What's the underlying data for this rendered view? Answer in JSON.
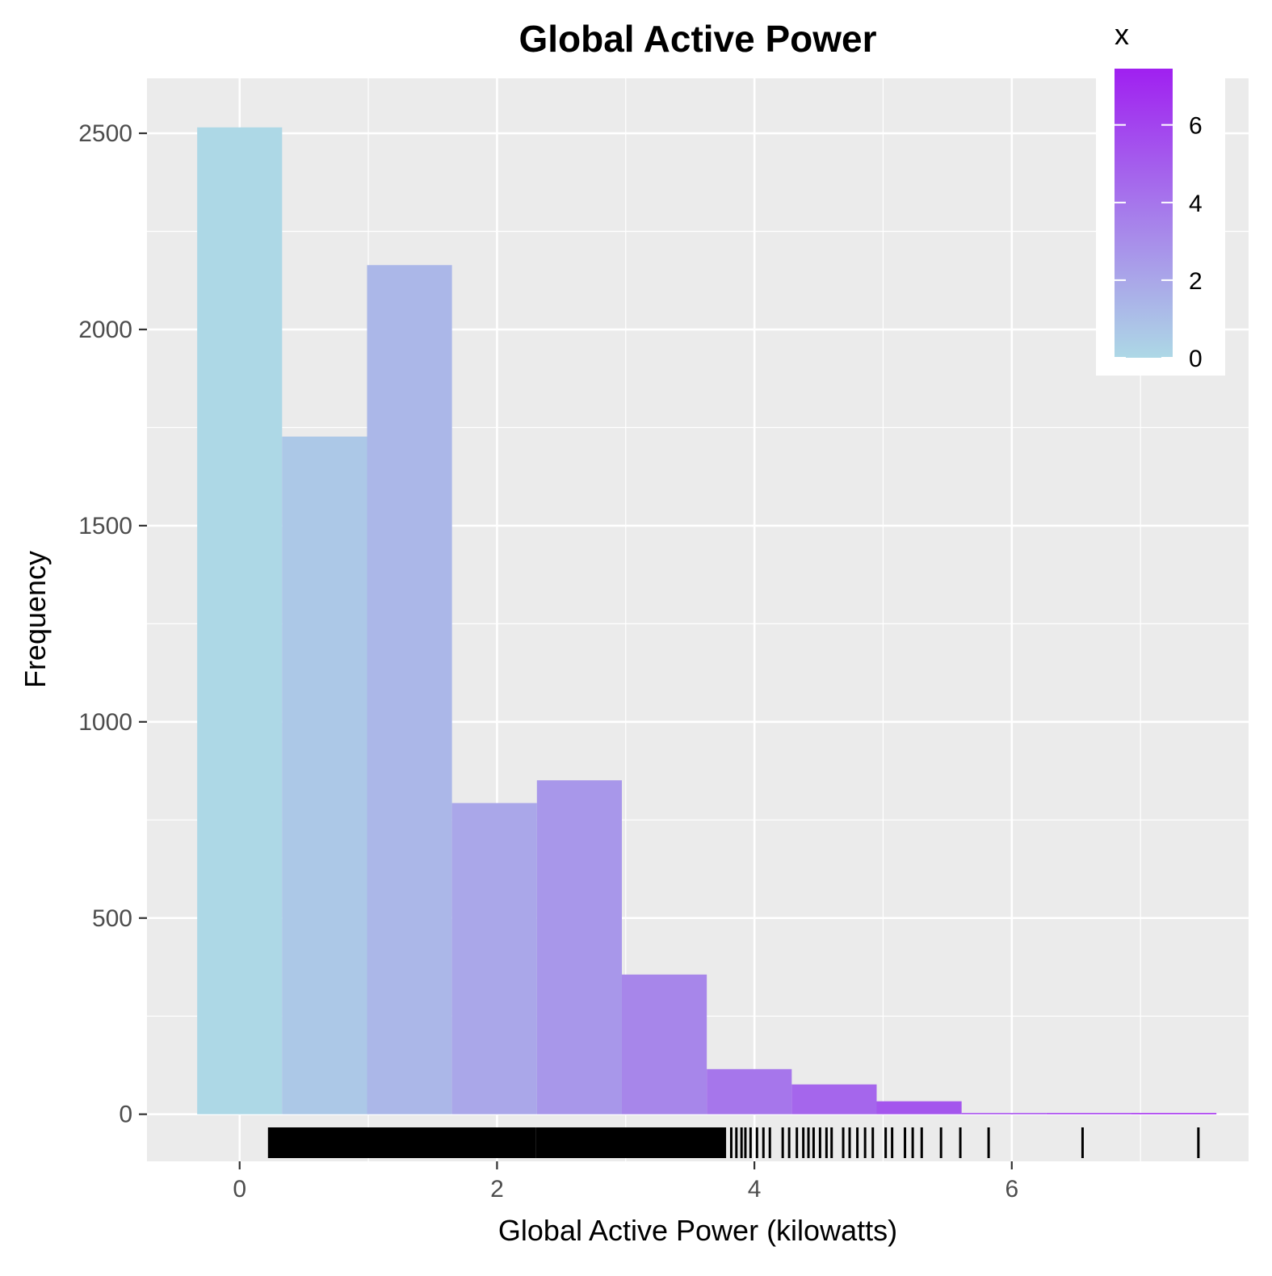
{
  "chart_data": {
    "type": "bar",
    "subtype": "histogram",
    "title": "Global Active Power",
    "xlabel": "Global Active Power (kilowatts)",
    "ylabel": "Frequency",
    "bins": [
      {
        "x0": -0.33,
        "x1": 0.33,
        "value": 2515
      },
      {
        "x0": 0.33,
        "x1": 0.99,
        "value": 1727
      },
      {
        "x0": 0.99,
        "x1": 1.65,
        "value": 2164
      },
      {
        "x0": 1.65,
        "x1": 2.31,
        "value": 793
      },
      {
        "x0": 2.31,
        "x1": 2.97,
        "value": 851
      },
      {
        "x0": 2.97,
        "x1": 3.63,
        "value": 356
      },
      {
        "x0": 3.63,
        "x1": 4.29,
        "value": 115
      },
      {
        "x0": 4.29,
        "x1": 4.95,
        "value": 76
      },
      {
        "x0": 4.95,
        "x1": 5.61,
        "value": 33
      },
      {
        "x0": 5.61,
        "x1": 6.27,
        "value": 3
      },
      {
        "x0": 6.27,
        "x1": 6.93,
        "value": 2
      },
      {
        "x0": 6.93,
        "x1": 7.59,
        "value": 3
      }
    ],
    "xlim": [
      -0.72,
      7.84
    ],
    "ylim": [
      -120,
      2640
    ],
    "x_ticks": [
      0,
      2,
      4,
      6
    ],
    "y_ticks": [
      0,
      500,
      1000,
      1500,
      2000,
      2500
    ],
    "grid": true,
    "rug": {
      "dense_ranges": [
        [
          0.22,
          2.3
        ],
        [
          2.3,
          3.78
        ]
      ],
      "ticks": [
        3.82,
        3.86,
        3.9,
        3.93,
        3.97,
        4.02,
        4.07,
        4.12,
        4.22,
        4.27,
        4.33,
        4.38,
        4.42,
        4.46,
        4.51,
        4.56,
        4.6,
        4.69,
        4.74,
        4.8,
        4.86,
        4.92,
        5.02,
        5.07,
        5.17,
        5.23,
        5.3,
        5.45,
        5.6,
        5.82,
        6.55,
        7.45
      ]
    },
    "legend": {
      "title": "x",
      "position": "top-right",
      "type": "colorbar",
      "range": [
        0,
        7.45
      ],
      "ticks": [
        0,
        2,
        4,
        6
      ],
      "color_low": "#add8e6",
      "color_high": "#a020f0"
    },
    "colors": {
      "panel_background": "#ebebeb",
      "gridline": "#ffffff",
      "rug": "#000000"
    }
  }
}
